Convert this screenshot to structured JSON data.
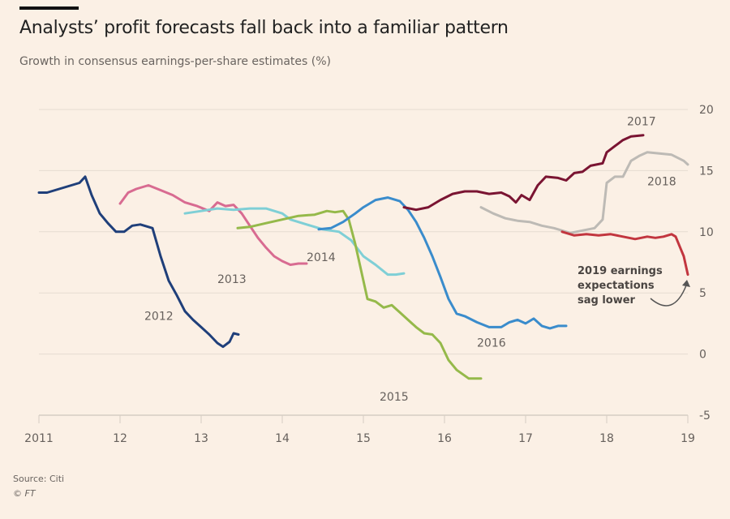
{
  "header": {
    "title": "Analysts’ profit forecasts fall back into a familiar pattern",
    "subtitle": "Growth in consensus earnings-per-share estimates (%)"
  },
  "footer": {
    "source": "Source: Citi",
    "copyright": "© FT"
  },
  "chart_data": {
    "type": "line",
    "title": "Analysts’ profit forecasts fall back into a familiar pattern",
    "subtitle": "Growth in consensus earnings-per-share estimates (%)",
    "xlabel": "",
    "ylabel": "",
    "xlim": [
      2011,
      2019
    ],
    "ylim": [
      -5,
      20
    ],
    "x_ticks": [
      2011,
      2012,
      2013,
      2014,
      2015,
      2016,
      2017,
      2018,
      2019
    ],
    "x_tick_labels": [
      "2011",
      "12",
      "13",
      "14",
      "15",
      "16",
      "17",
      "18",
      "19"
    ],
    "y_ticks": [
      20,
      15,
      10,
      5,
      0,
      -5
    ],
    "y_tick_labels": [
      "20",
      "15",
      "10",
      "5",
      "0",
      "-5"
    ],
    "y_axis_side": "right",
    "grid": true,
    "legend": "inline labels",
    "series": [
      {
        "name": "2012",
        "color": "#1f3f7a",
        "points": [
          [
            2011.0,
            13.2
          ],
          [
            2011.1,
            13.2
          ],
          [
            2011.2,
            13.4
          ],
          [
            2011.3,
            13.6
          ],
          [
            2011.4,
            13.8
          ],
          [
            2011.5,
            14.0
          ],
          [
            2011.57,
            14.5
          ],
          [
            2011.65,
            13.0
          ],
          [
            2011.75,
            11.5
          ],
          [
            2011.85,
            10.7
          ],
          [
            2011.95,
            10.0
          ],
          [
            2012.05,
            10.0
          ],
          [
            2012.15,
            10.5
          ],
          [
            2012.25,
            10.6
          ],
          [
            2012.4,
            10.3
          ],
          [
            2012.5,
            8.0
          ],
          [
            2012.6,
            6.0
          ],
          [
            2012.7,
            4.8
          ],
          [
            2012.8,
            3.5
          ],
          [
            2012.9,
            2.8
          ],
          [
            2013.0,
            2.2
          ],
          [
            2013.1,
            1.6
          ],
          [
            2013.2,
            0.9
          ],
          [
            2013.27,
            0.6
          ],
          [
            2013.35,
            1.0
          ],
          [
            2013.4,
            1.7
          ],
          [
            2013.46,
            1.6
          ]
        ]
      },
      {
        "name": "2013",
        "color": "#d86b91",
        "points": [
          [
            2012.0,
            12.3
          ],
          [
            2012.1,
            13.2
          ],
          [
            2012.2,
            13.5
          ],
          [
            2012.35,
            13.8
          ],
          [
            2012.5,
            13.4
          ],
          [
            2012.65,
            13.0
          ],
          [
            2012.8,
            12.4
          ],
          [
            2012.95,
            12.1
          ],
          [
            2013.1,
            11.7
          ],
          [
            2013.2,
            12.4
          ],
          [
            2013.3,
            12.1
          ],
          [
            2013.4,
            12.2
          ],
          [
            2013.5,
            11.5
          ],
          [
            2013.6,
            10.5
          ],
          [
            2013.7,
            9.5
          ],
          [
            2013.8,
            8.7
          ],
          [
            2013.9,
            8.0
          ],
          [
            2014.0,
            7.6
          ],
          [
            2014.1,
            7.3
          ],
          [
            2014.2,
            7.4
          ],
          [
            2014.3,
            7.4
          ]
        ]
      },
      {
        "name": "2014",
        "color": "#7fcfd6",
        "points": [
          [
            2012.8,
            11.5
          ],
          [
            2013.0,
            11.7
          ],
          [
            2013.2,
            11.9
          ],
          [
            2013.4,
            11.8
          ],
          [
            2013.6,
            11.9
          ],
          [
            2013.8,
            11.9
          ],
          [
            2014.0,
            11.5
          ],
          [
            2014.1,
            11.0
          ],
          [
            2014.3,
            10.6
          ],
          [
            2014.5,
            10.2
          ],
          [
            2014.7,
            10.0
          ],
          [
            2014.85,
            9.3
          ],
          [
            2015.0,
            8.0
          ],
          [
            2015.15,
            7.3
          ],
          [
            2015.3,
            6.5
          ],
          [
            2015.4,
            6.5
          ],
          [
            2015.5,
            6.6
          ]
        ]
      },
      {
        "name": "2015",
        "color": "#95b94a",
        "points": [
          [
            2013.45,
            10.3
          ],
          [
            2013.6,
            10.4
          ],
          [
            2013.8,
            10.7
          ],
          [
            2014.0,
            11.0
          ],
          [
            2014.2,
            11.3
          ],
          [
            2014.4,
            11.4
          ],
          [
            2014.55,
            11.7
          ],
          [
            2014.65,
            11.6
          ],
          [
            2014.75,
            11.7
          ],
          [
            2014.82,
            11.0
          ],
          [
            2014.9,
            9.0
          ],
          [
            2015.0,
            6.0
          ],
          [
            2015.05,
            4.5
          ],
          [
            2015.15,
            4.3
          ],
          [
            2015.25,
            3.8
          ],
          [
            2015.35,
            4.0
          ],
          [
            2015.45,
            3.4
          ],
          [
            2015.55,
            2.8
          ],
          [
            2015.65,
            2.2
          ],
          [
            2015.75,
            1.7
          ],
          [
            2015.85,
            1.6
          ],
          [
            2015.95,
            0.9
          ],
          [
            2016.05,
            -0.5
          ],
          [
            2016.15,
            -1.3
          ],
          [
            2016.3,
            -2.0
          ],
          [
            2016.45,
            -2.0
          ]
        ]
      },
      {
        "name": "2016",
        "color": "#3a8ccc",
        "points": [
          [
            2014.45,
            10.2
          ],
          [
            2014.6,
            10.3
          ],
          [
            2014.75,
            10.8
          ],
          [
            2014.9,
            11.5
          ],
          [
            2015.0,
            12.0
          ],
          [
            2015.15,
            12.6
          ],
          [
            2015.3,
            12.8
          ],
          [
            2015.45,
            12.5
          ],
          [
            2015.55,
            11.8
          ],
          [
            2015.65,
            10.8
          ],
          [
            2015.75,
            9.5
          ],
          [
            2015.85,
            8.0
          ],
          [
            2015.95,
            6.3
          ],
          [
            2016.05,
            4.5
          ],
          [
            2016.15,
            3.3
          ],
          [
            2016.25,
            3.1
          ],
          [
            2016.4,
            2.6
          ],
          [
            2016.55,
            2.2
          ],
          [
            2016.7,
            2.2
          ],
          [
            2016.8,
            2.6
          ],
          [
            2016.9,
            2.8
          ],
          [
            2017.0,
            2.5
          ],
          [
            2017.1,
            2.9
          ],
          [
            2017.2,
            2.3
          ],
          [
            2017.3,
            2.1
          ],
          [
            2017.4,
            2.3
          ],
          [
            2017.5,
            2.3
          ]
        ]
      },
      {
        "name": "2017",
        "color": "#7a1432",
        "points": [
          [
            2015.5,
            12.0
          ],
          [
            2015.65,
            11.8
          ],
          [
            2015.8,
            12.0
          ],
          [
            2015.95,
            12.6
          ],
          [
            2016.1,
            13.1
          ],
          [
            2016.25,
            13.3
          ],
          [
            2016.4,
            13.3
          ],
          [
            2016.55,
            13.1
          ],
          [
            2016.7,
            13.2
          ],
          [
            2016.8,
            12.9
          ],
          [
            2016.88,
            12.4
          ],
          [
            2016.95,
            13.0
          ],
          [
            2017.05,
            12.6
          ],
          [
            2017.15,
            13.8
          ],
          [
            2017.25,
            14.5
          ],
          [
            2017.4,
            14.4
          ],
          [
            2017.5,
            14.2
          ],
          [
            2017.6,
            14.8
          ],
          [
            2017.7,
            14.9
          ],
          [
            2017.8,
            15.4
          ],
          [
            2017.95,
            15.6
          ],
          [
            2018.0,
            16.5
          ],
          [
            2018.1,
            17.0
          ],
          [
            2018.2,
            17.5
          ],
          [
            2018.3,
            17.8
          ],
          [
            2018.45,
            17.9
          ]
        ]
      },
      {
        "name": "2018",
        "color": "#bdbab5",
        "points": [
          [
            2016.45,
            12.0
          ],
          [
            2016.6,
            11.5
          ],
          [
            2016.75,
            11.1
          ],
          [
            2016.9,
            10.9
          ],
          [
            2017.05,
            10.8
          ],
          [
            2017.2,
            10.5
          ],
          [
            2017.35,
            10.3
          ],
          [
            2017.55,
            9.9
          ],
          [
            2017.7,
            10.1
          ],
          [
            2017.85,
            10.3
          ],
          [
            2017.95,
            11.0
          ],
          [
            2018.0,
            14.0
          ],
          [
            2018.1,
            14.5
          ],
          [
            2018.2,
            14.5
          ],
          [
            2018.3,
            15.8
          ],
          [
            2018.4,
            16.2
          ],
          [
            2018.5,
            16.5
          ],
          [
            2018.65,
            16.4
          ],
          [
            2018.8,
            16.3
          ],
          [
            2018.95,
            15.8
          ],
          [
            2019.0,
            15.5
          ]
        ]
      },
      {
        "name": "2019",
        "color": "#c2363f",
        "points": [
          [
            2017.45,
            10.0
          ],
          [
            2017.6,
            9.7
          ],
          [
            2017.75,
            9.8
          ],
          [
            2017.9,
            9.7
          ],
          [
            2018.05,
            9.8
          ],
          [
            2018.2,
            9.6
          ],
          [
            2018.35,
            9.4
          ],
          [
            2018.5,
            9.6
          ],
          [
            2018.6,
            9.5
          ],
          [
            2018.7,
            9.6
          ],
          [
            2018.8,
            9.8
          ],
          [
            2018.85,
            9.6
          ],
          [
            2018.9,
            8.8
          ],
          [
            2018.95,
            8.0
          ],
          [
            2019.0,
            6.5
          ]
        ]
      }
    ],
    "series_labels": [
      {
        "name": "2012",
        "x": 2012.3,
        "y": 2.8
      },
      {
        "name": "2013",
        "x": 2013.2,
        "y": 5.8
      },
      {
        "name": "2014",
        "x": 2014.3,
        "y": 7.6
      },
      {
        "name": "2015",
        "x": 2015.2,
        "y": -3.8
      },
      {
        "name": "2016",
        "x": 2016.4,
        "y": 0.6
      },
      {
        "name": "2017",
        "x": 2018.25,
        "y": 18.7
      },
      {
        "name": "2018",
        "x": 2018.5,
        "y": 13.8
      },
      {
        "name": "2019",
        "x": 0,
        "y": 0
      }
    ],
    "annotation": {
      "lines": [
        "2019 earnings",
        "expectations",
        "sag lower"
      ],
      "points_to": "2019"
    }
  }
}
